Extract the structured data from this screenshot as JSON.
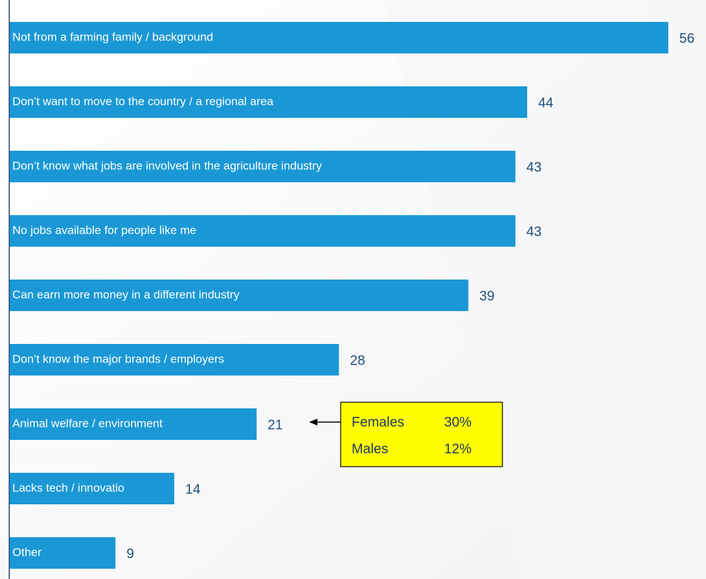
{
  "chart_data": {
    "type": "bar",
    "orientation": "horizontal",
    "categories": [
      "Not from a farming family / background",
      "Don’t want to move to the country / a regional area",
      "Don’t know what jobs are involved in the agriculture industry",
      "No jobs available for people like me",
      "Can earn more money in a different industry",
      "Don’t know the major brands / employers",
      "Animal welfare / environment",
      "Lacks tech / innovatio",
      "Other"
    ],
    "values": [
      56,
      44,
      43,
      43,
      39,
      28,
      21,
      14,
      9
    ],
    "color": "#1a98d5",
    "annotation": {
      "rows": [
        [
          "Females",
          "30%"
        ],
        [
          "Males",
          "12%"
        ]
      ],
      "target": 6,
      "fill": "#ffff00"
    }
  }
}
